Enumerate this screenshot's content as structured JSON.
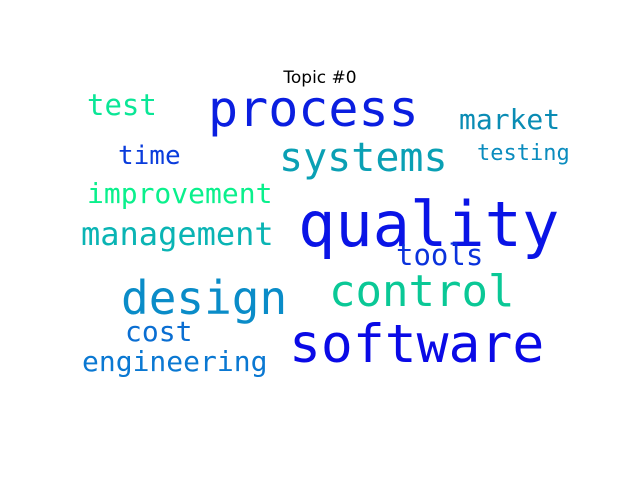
{
  "title": "Topic #0",
  "words": [
    {
      "text": "process",
      "color": "#0a1ee0"
    },
    {
      "text": "quality",
      "color": "#0a14e6"
    },
    {
      "text": "systems",
      "color": "#0aa0b4"
    },
    {
      "text": "software",
      "color": "#0a0ae6"
    },
    {
      "text": "design",
      "color": "#0a8cc8"
    },
    {
      "text": "control",
      "color": "#0ac896"
    },
    {
      "text": "management",
      "color": "#0ab4b4"
    },
    {
      "text": "improvement",
      "color": "#0af08c"
    },
    {
      "text": "engineering",
      "color": "#0a78d2"
    },
    {
      "text": "test",
      "color": "#0ae696"
    },
    {
      "text": "market",
      "color": "#0a8cb4"
    },
    {
      "text": "time",
      "color": "#0a3cdc"
    },
    {
      "text": "testing",
      "color": "#0a8cbe"
    },
    {
      "text": "tools",
      "color": "#0a32dc"
    },
    {
      "text": "cost",
      "color": "#0a6ed2"
    }
  ]
}
